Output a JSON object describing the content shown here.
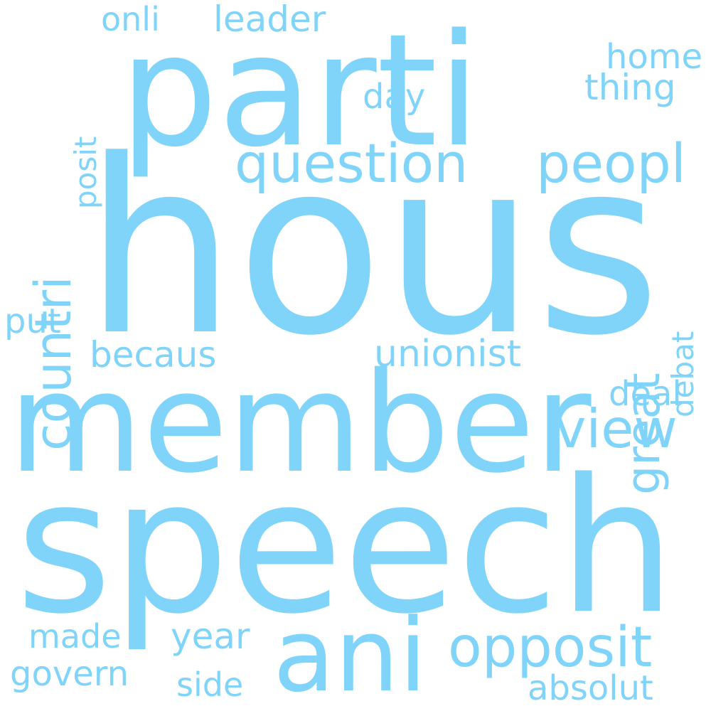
{
  "color": "#80d4f9",
  "background": "#ffffff",
  "words": {
    "parti": "parti",
    "hous": "hous",
    "member": "member",
    "speech": "speech",
    "ani": "ani",
    "question": "question",
    "peopl": "peopl",
    "countri": "countri",
    "great": "great",
    "view": "view",
    "opposit": "opposit",
    "onli": "onli",
    "leader": "leader",
    "posit": "posit",
    "home": "home",
    "thing": "thing",
    "day": "day",
    "debat": "debat",
    "put": "put",
    "becaus": "becaus",
    "unionist": "unionist",
    "deal": "deal",
    "made": "made",
    "year": "year",
    "govern": "govern",
    "side": "side",
    "absolut": "absolut"
  }
}
